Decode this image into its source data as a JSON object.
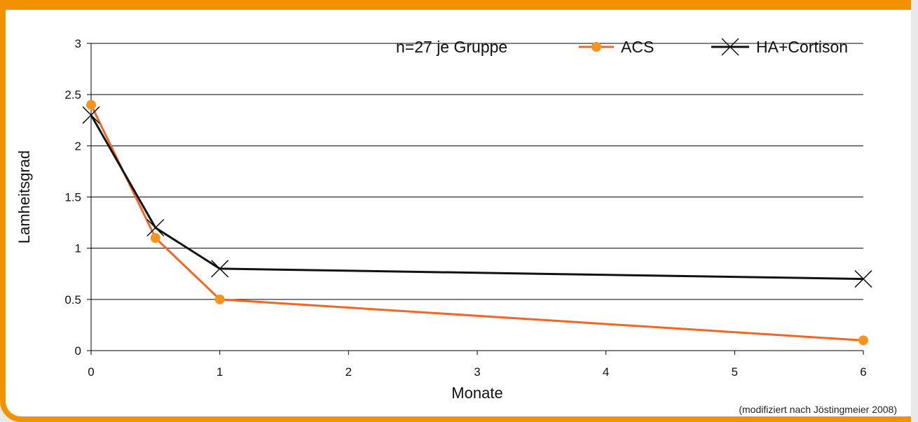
{
  "chart_data": {
    "type": "line",
    "xlabel": "Monate",
    "ylabel": "Lamheitsgrad",
    "xlim": [
      0,
      6
    ],
    "ylim": [
      0,
      3
    ],
    "x_ticks": [
      0,
      1,
      2,
      3,
      4,
      5,
      6
    ],
    "y_ticks": [
      0,
      0.5,
      1,
      1.5,
      2,
      2.5,
      3
    ],
    "y_tick_labels": [
      "0",
      "0.5",
      "1",
      "1.5",
      "2",
      "2.5",
      "3"
    ],
    "grid": "horizontal",
    "legend_placement": "top-right",
    "annotation": "n=27 je Gruppe",
    "series": [
      {
        "name": "ACS",
        "marker": "circle",
        "color": "#f26522",
        "marker_color": "#f7941d",
        "x": [
          0,
          0.5,
          1,
          6
        ],
        "y": [
          2.4,
          1.1,
          0.5,
          0.1
        ]
      },
      {
        "name": "HA+Cortison",
        "marker": "x",
        "color": "#111111",
        "marker_color": "#111111",
        "x": [
          0,
          0.5,
          1,
          6
        ],
        "y": [
          2.3,
          1.2,
          0.8,
          0.7
        ]
      }
    ]
  },
  "source": "(modifiziert nach Jöstingmeier 2008)",
  "colors": {
    "frame": "#f39200",
    "grid": "#000000"
  }
}
